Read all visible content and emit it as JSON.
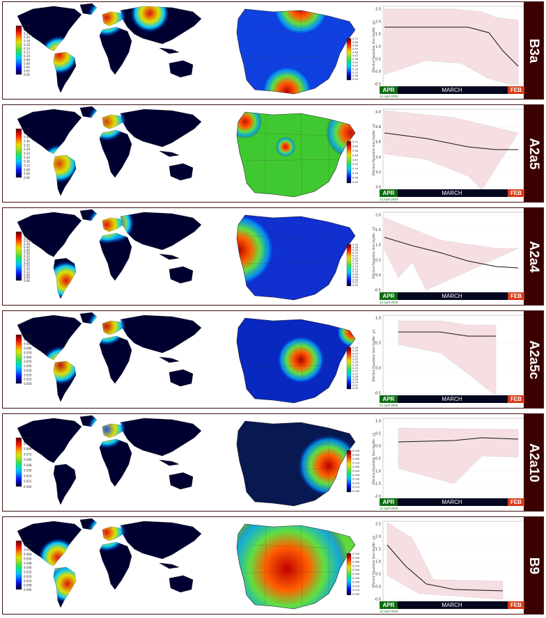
{
  "panels": [
    {
      "label": "B3a",
      "world_scale": [
        "0.26",
        "0.24",
        "0.22",
        "0.20",
        "0.18",
        "0.16",
        "0.14",
        "0.12",
        "0.10",
        "0.08",
        "0.06",
        "0.04",
        "0.02",
        "0.00"
      ],
      "spain_scale": [
        "0.72",
        "0.66",
        "0.60",
        "0.54",
        "0.48",
        "0.42",
        "0.36",
        "0.30",
        "0.24",
        "0.18",
        "0.12",
        "0.06",
        "0.00"
      ],
      "y_ticks": [
        "2.5",
        "2.0",
        "1.5",
        "1.0",
        "0.5",
        "0.0",
        "-0.5"
      ],
      "world_hotspot": "#e01010",
      "spain_hotspot": "#c00000"
    },
    {
      "label": "A2a5",
      "world_scale": [
        "0.48",
        "0.44",
        "0.40",
        "0.36",
        "0.32",
        "0.28",
        "0.24",
        "0.20",
        "0.16",
        "0.12",
        "0.08",
        "0.04",
        "0.00"
      ],
      "spain_scale": [
        "0.72",
        "0.64",
        "0.56",
        "0.48",
        "0.40",
        "0.32",
        "0.24",
        "0.16",
        "0.08",
        "0.00"
      ],
      "y_ticks": [
        "4.0",
        "3.8",
        "3.6",
        "3.4",
        "3.2",
        "3.0"
      ],
      "world_hotspot": "#d04010",
      "spain_hotspot": "#c01010"
    },
    {
      "label": "A2a4",
      "world_scale": [
        "0.64",
        "0.60",
        "0.56",
        "0.52",
        "0.48",
        "0.44",
        "0.40",
        "0.36",
        "0.32",
        "0.28",
        "0.24",
        "0.20",
        "0.16",
        "0.12",
        "0.08",
        "0.04",
        "0.00"
      ],
      "spain_scale": [
        "0.30",
        "0.28",
        "0.26",
        "0.24",
        "0.22",
        "0.20",
        "0.18",
        "0.16",
        "0.14",
        "0.12",
        "0.10",
        "0.08",
        "0.06",
        "0.04",
        "0.02",
        "0.00"
      ],
      "y_ticks": [
        "2.0",
        "1.5",
        "1.0",
        "0.5",
        "0.0",
        "-0.5"
      ],
      "world_hotspot": "#e01010",
      "spain_hotspot": "#b00000"
    },
    {
      "label": "A2a5c",
      "world_scale": [
        "0.110",
        "0.100",
        "0.090",
        "0.080",
        "0.070",
        "0.060",
        "0.050",
        "0.040",
        "0.030",
        "0.020",
        "0.010",
        "0.000"
      ],
      "spain_scale": [
        "0.28",
        "0.26",
        "0.24",
        "0.22",
        "0.20",
        "0.18",
        "0.16",
        "0.14",
        "0.12",
        "0.10",
        "0.08",
        "0.06",
        "0.04",
        "0.02",
        "0.00"
      ],
      "y_ticks": [
        "1.0",
        "0.5",
        "0.0",
        "-0.5"
      ],
      "world_hotspot": "#c01010",
      "spain_hotspot": "#b00000"
    },
    {
      "label": "A2a10",
      "world_scale": [
        "0.108",
        "0.096",
        "0.084",
        "0.072",
        "0.060",
        "0.048",
        "0.036",
        "0.024",
        "0.012",
        "0.000"
      ],
      "spain_scale": [
        "0.100",
        "0.090",
        "0.080",
        "0.070",
        "0.060",
        "0.050",
        "0.040",
        "0.030",
        "0.020",
        "0.010",
        "0.000"
      ],
      "y_ticks": [
        "1.0",
        "0.5",
        "0.0",
        "-0.5",
        "-1.0",
        "-1.5",
        "-2.0"
      ],
      "world_hotspot": "#2050e0",
      "spain_hotspot": "#c00000"
    },
    {
      "label": "B9",
      "world_scale": [
        "0.088",
        "0.080",
        "0.072",
        "0.064",
        "0.056",
        "0.048",
        "0.040",
        "0.032",
        "0.024",
        "0.016",
        "0.008",
        "0.000"
      ],
      "spain_scale": [
        "0.100",
        "0.090",
        "0.080",
        "0.070",
        "0.060",
        "0.050",
        "0.040",
        "0.030",
        "0.020",
        "0.010",
        "0.000"
      ],
      "y_ticks": [
        "2.5",
        "2.0",
        "1.5",
        "1.0",
        "0.5",
        "0.0",
        "-0.5"
      ],
      "world_hotspot": "#e01010",
      "spain_hotspot": "#c00000"
    }
  ],
  "timeline": {
    "apr": "APR",
    "march": "MARCH",
    "feb": "FEB",
    "date": "12 April 2020"
  },
  "y_axis_label": "Effective Population Size (log(Ne · g))"
}
